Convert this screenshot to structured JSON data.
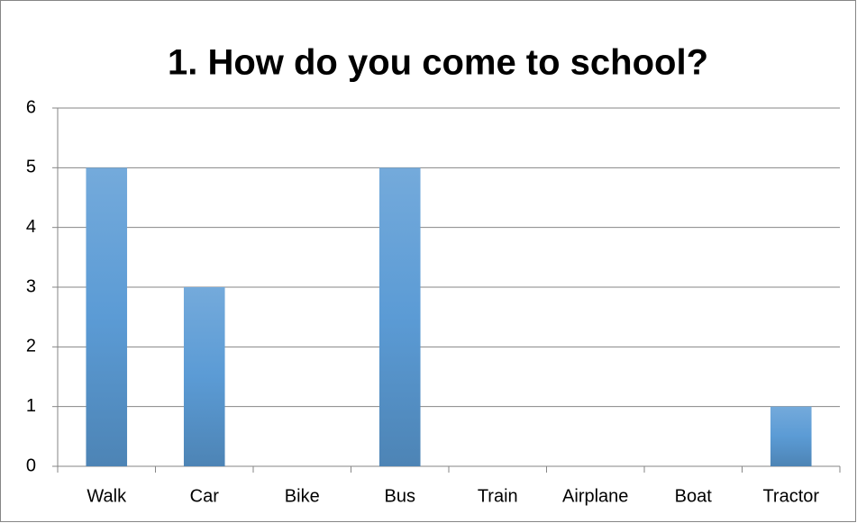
{
  "chart_data": {
    "type": "bar",
    "title": "1. How do you come to school?",
    "categories": [
      "Walk",
      "Car",
      "Bike",
      "Bus",
      "Train",
      "Airplane",
      "Boat",
      "Tractor"
    ],
    "values": [
      5,
      3,
      0,
      5,
      0,
      0,
      0,
      1
    ],
    "color": "#5b9bd5",
    "ylim": [
      0,
      6
    ],
    "yticks": [
      0,
      1,
      2,
      3,
      4,
      5,
      6
    ],
    "grid": true
  }
}
